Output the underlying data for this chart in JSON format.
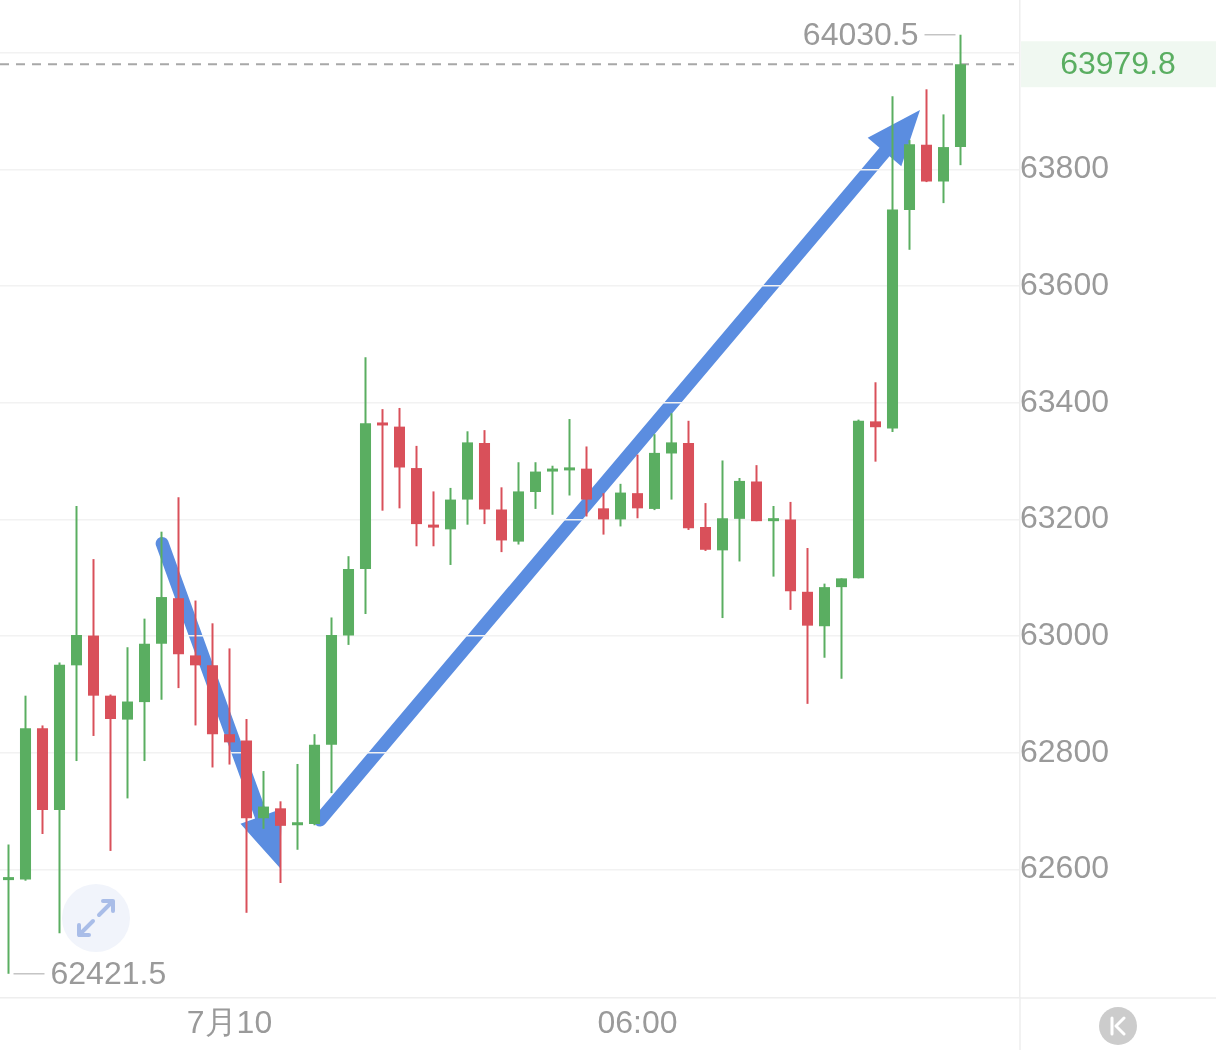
{
  "chart_data": {
    "type": "candlestick",
    "categories": [
      null,
      null,
      null,
      null,
      null,
      null,
      null,
      null,
      null,
      null,
      null,
      null,
      null,
      "7月10",
      null,
      null,
      null,
      null,
      null,
      null,
      null,
      null,
      null,
      null,
      null,
      null,
      null,
      null,
      null,
      null,
      null,
      null,
      null,
      null,
      null,
      null,
      null,
      "06:00",
      null,
      null,
      null,
      null,
      null,
      null,
      null,
      null,
      null,
      null,
      null,
      null,
      null,
      null,
      null,
      null,
      null,
      null,
      null,
      null,
      null,
      null
    ],
    "ohlc": [
      [
        62582,
        62643,
        62421.5,
        62584
      ],
      [
        62583,
        62898,
        62581,
        62842
      ],
      [
        62842,
        62847,
        62661,
        62702
      ],
      [
        62702,
        62955,
        62491,
        62951
      ],
      [
        62950,
        63223,
        62786,
        63002
      ],
      [
        63001,
        63132,
        62829,
        62898
      ],
      [
        62898,
        62900,
        62632,
        62858
      ],
      [
        62857,
        62981,
        62722,
        62888
      ],
      [
        62887,
        63030,
        62786,
        62987
      ],
      [
        62987,
        63179,
        62891,
        63067
      ],
      [
        63065,
        63238,
        62911,
        62969
      ],
      [
        62967,
        63061,
        62847,
        62950
      ],
      [
        62950,
        63022,
        62775,
        62832
      ],
      [
        62832,
        62979,
        62780,
        62818
      ],
      [
        62821,
        62858,
        62526,
        62688
      ],
      [
        62688,
        62769,
        62670,
        62708
      ],
      [
        62705,
        62717,
        62577,
        62675
      ],
      [
        62676,
        62781,
        62634,
        62678
      ],
      [
        62678,
        62832,
        62676,
        62814
      ],
      [
        62814,
        63032,
        62731,
        63002
      ],
      [
        63001,
        63137,
        62985,
        63115
      ],
      [
        63115,
        63478,
        63038,
        63365
      ],
      [
        63365,
        63389,
        63215,
        63361
      ],
      [
        63359,
        63391,
        63219,
        63289
      ],
      [
        63288,
        63326,
        63154,
        63192
      ],
      [
        63190,
        63248,
        63154,
        63186
      ],
      [
        63183,
        63254,
        63122,
        63234
      ],
      [
        63234,
        63351,
        63191,
        63332
      ],
      [
        63331,
        63353,
        63192,
        63217
      ],
      [
        63217,
        63255,
        63144,
        63164
      ],
      [
        63162,
        63298,
        63157,
        63248
      ],
      [
        63247,
        63298,
        63218,
        63282
      ],
      [
        63282,
        63292,
        63208,
        63286
      ],
      [
        63284,
        63372,
        63241,
        63288
      ],
      [
        63287,
        63325,
        63205,
        63234
      ],
      [
        63219,
        63245,
        63174,
        63200
      ],
      [
        63200,
        63261,
        63188,
        63246
      ],
      [
        63245,
        63311,
        63202,
        63219
      ],
      [
        63218,
        63346,
        63216,
        63314
      ],
      [
        63313,
        63382,
        63234,
        63332
      ],
      [
        63331,
        63369,
        63182,
        63185
      ],
      [
        63187,
        63228,
        63146,
        63148
      ],
      [
        63147,
        63301,
        63031,
        63202
      ],
      [
        63201,
        63271,
        63128,
        63266
      ],
      [
        63265,
        63293,
        63197,
        63197
      ],
      [
        63197,
        63223,
        63102,
        63199
      ],
      [
        63200,
        63230,
        63045,
        63077
      ],
      [
        63076,
        63151,
        62884,
        63018
      ],
      [
        63017,
        63090,
        62963,
        63084
      ],
      [
        63084,
        63099,
        62927,
        63099
      ],
      [
        63099,
        63371,
        63099,
        63369
      ],
      [
        63368,
        63435,
        63299,
        63358
      ],
      [
        63356,
        63925,
        63350,
        63731
      ],
      [
        63730,
        63850,
        63662,
        63843
      ],
      [
        63842,
        63937,
        63778,
        63779
      ],
      [
        63779,
        63894,
        63742,
        63838
      ],
      [
        63838,
        64030.5,
        63807,
        63979.8
      ],
      null,
      null,
      null
    ],
    "colors": [
      "#5aae61",
      "#5aae61",
      "#d9505a",
      "#5aae61",
      "#5aae61",
      "#d9505a",
      "#d9505a",
      "#5aae61",
      "#5aae61",
      "#5aae61",
      "#d9505a",
      "#d9505a",
      "#d9505a",
      "#d9505a",
      "#d9505a",
      "#5aae61",
      "#d9505a",
      "#5aae61",
      "#5aae61",
      "#5aae61",
      "#5aae61",
      "#5aae61",
      "#d9505a",
      "#d9505a",
      "#d9505a",
      "#d9505a",
      "#5aae61",
      "#5aae61",
      "#d9505a",
      "#d9505a",
      "#5aae61",
      "#5aae61",
      "#5aae61",
      "#5aae61",
      "#d9505a",
      "#d9505a",
      "#5aae61",
      "#d9505a",
      "#5aae61",
      "#5aae61",
      "#d9505a",
      "#d9505a",
      "#5aae61",
      "#5aae61",
      "#d9505a",
      "#5aae61",
      "#d9505a",
      "#d9505a",
      "#5aae61",
      "#5aae61",
      "#5aae61",
      "#d9505a",
      "#5aae61",
      "#5aae61",
      "#d9505a",
      "#5aae61",
      "#5aae61",
      null,
      null,
      null
    ],
    "ylim": [
      62380,
      64090
    ],
    "yticks": [
      62600,
      62800,
      63000,
      63200,
      63400,
      63600,
      63800,
      {
        "value": 64000,
        "label": null
      }
    ],
    "grid": "y",
    "ref_lines": [
      {
        "axis": "y",
        "value": 63979.8,
        "label": "63979.8",
        "color": "#a8a8a8",
        "line_style": "dashed"
      }
    ],
    "annotations": [
      "64030.5",
      "62421.5"
    ]
  }
}
